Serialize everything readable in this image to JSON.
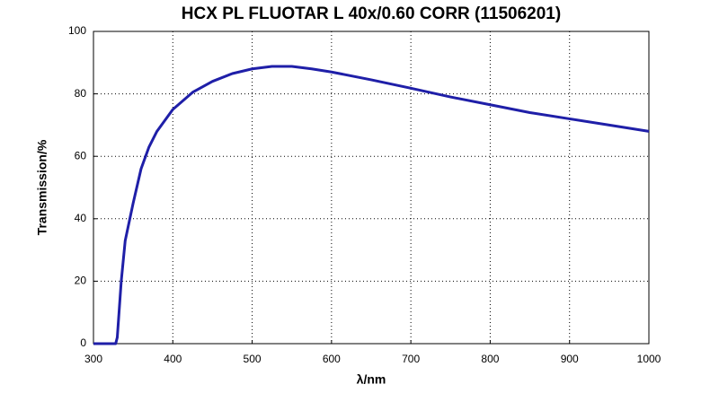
{
  "chart_data": {
    "type": "line",
    "title": "HCX PL FLUOTAR L 40x/0.60 CORR (11506201)",
    "x_label": "λ/nm",
    "y_label": "Transmission/%",
    "x": [
      300,
      320,
      328,
      330,
      335,
      340,
      350,
      360,
      370,
      380,
      400,
      425,
      450,
      475,
      500,
      525,
      550,
      575,
      600,
      650,
      700,
      750,
      800,
      850,
      900,
      950,
      1000
    ],
    "series": [
      {
        "name": "Transmission",
        "color": "#1f1fa8",
        "values": [
          0,
          0,
          0,
          2,
          20,
          33,
          45,
          56,
          63,
          68,
          75,
          80.5,
          84,
          86.5,
          88,
          88.8,
          88.8,
          88,
          87,
          84.5,
          81.8,
          79,
          76.5,
          74,
          72,
          70,
          68
        ]
      }
    ],
    "xlim": [
      300,
      1000
    ],
    "ylim": [
      0,
      100
    ],
    "xticks": [
      300,
      400,
      500,
      600,
      700,
      800,
      900,
      1000
    ],
    "yticks": [
      0,
      20,
      40,
      60,
      80,
      100
    ],
    "grid": true
  }
}
